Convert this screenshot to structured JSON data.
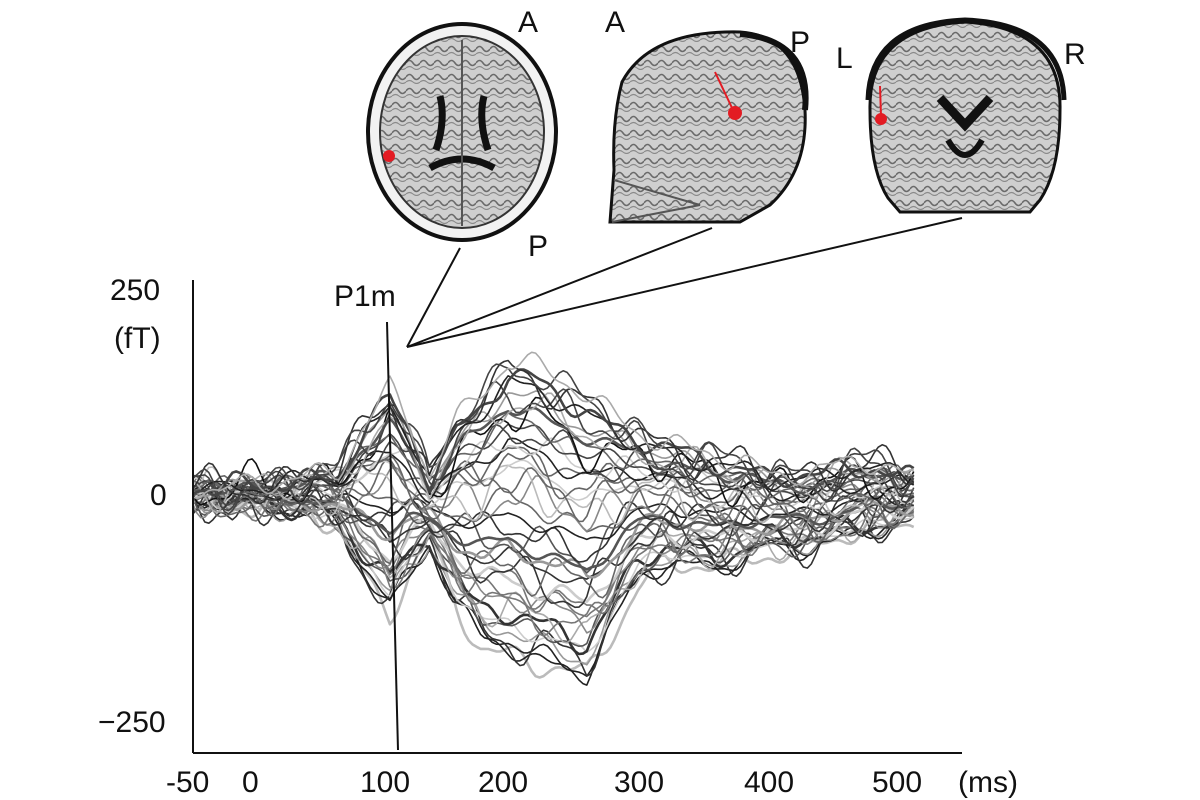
{
  "chart_data": {
    "type": "line",
    "title": "",
    "xlabel": "(ms)",
    "ylabel": "(fT)",
    "xlim": [
      -50,
      500
    ],
    "ylim": [
      -250,
      250
    ],
    "x_ticks": [
      "-50",
      "0",
      "100",
      "200",
      "300",
      "400",
      "500"
    ],
    "x_tick_values": [
      -50,
      0,
      100,
      200,
      300,
      400,
      500
    ],
    "y_ticks": [
      "250",
      "0",
      "−250"
    ],
    "y_tick_values": [
      250,
      0,
      -250
    ],
    "x_unit": "(ms)",
    "y_unit": "(fT)",
    "annotation": {
      "label": "P1m",
      "x": 100
    },
    "grid": false,
    "series_style": "butterfly plot of many overlaid MEG sensor waveforms in black and gray shades",
    "envelope": {
      "x": [
        -50,
        -40,
        -30,
        -20,
        -10,
        0,
        20,
        40,
        60,
        80,
        100,
        115,
        130,
        150,
        170,
        190,
        210,
        230,
        250,
        270,
        290,
        310,
        330,
        350,
        370,
        390,
        410,
        430,
        450,
        470,
        490,
        500
      ],
      "upper": [
        10,
        15,
        5,
        12,
        10,
        8,
        14,
        20,
        28,
        90,
        130,
        85,
        20,
        90,
        130,
        170,
        160,
        140,
        125,
        100,
        80,
        65,
        50,
        45,
        40,
        25,
        30,
        25,
        35,
        40,
        25,
        25
      ],
      "lower": [
        -10,
        -15,
        -8,
        -20,
        -12,
        -15,
        -18,
        -22,
        -40,
        -100,
        -150,
        -105,
        -60,
        -140,
        -190,
        -200,
        -215,
        -220,
        -230,
        -170,
        -110,
        -90,
        -90,
        -95,
        -80,
        -70,
        -75,
        -60,
        -55,
        -45,
        -35,
        -30
      ]
    }
  },
  "mri": {
    "axial": {
      "label_a": "A",
      "label_b": "P"
    },
    "sagittal": {
      "label_a": "A",
      "label_b": "P"
    },
    "coronal": {
      "label_a": "L",
      "label_b": "R"
    },
    "dipole_color": "#e31b23"
  }
}
